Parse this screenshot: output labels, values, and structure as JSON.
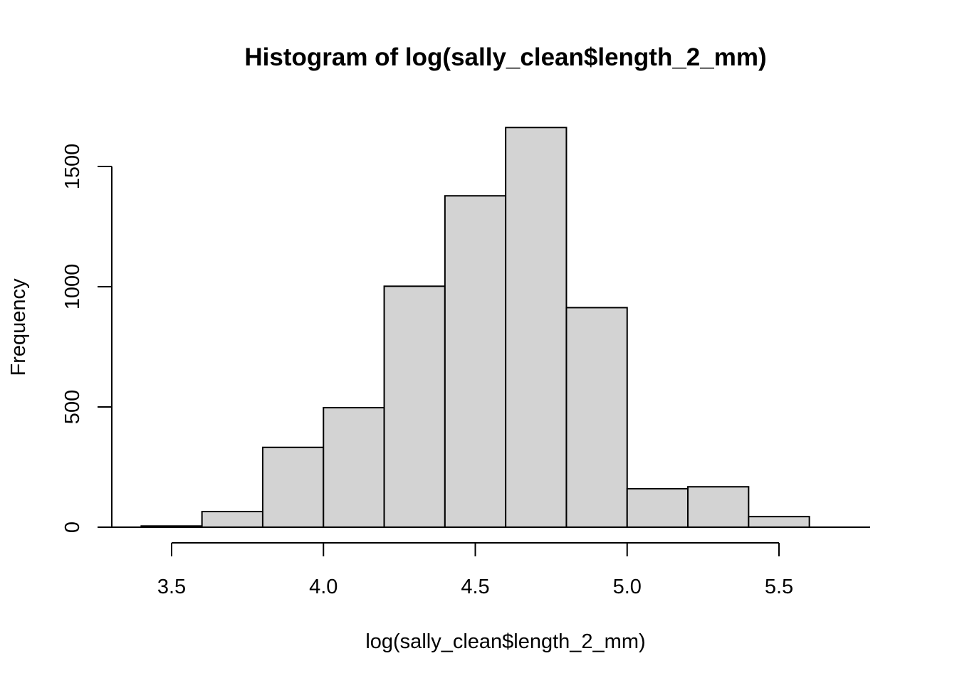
{
  "chart_data": {
    "type": "bar",
    "title": "Histogram of log(sally_clean$length_2_mm)",
    "xlabel": "log(sally_clean$length_2_mm)",
    "ylabel": "Frequency",
    "bins": [
      {
        "x0": 3.4,
        "x1": 3.6,
        "count": 5
      },
      {
        "x0": 3.6,
        "x1": 3.8,
        "count": 65
      },
      {
        "x0": 3.8,
        "x1": 4.0,
        "count": 332
      },
      {
        "x0": 4.0,
        "x1": 4.2,
        "count": 497
      },
      {
        "x0": 4.2,
        "x1": 4.4,
        "count": 1002
      },
      {
        "x0": 4.4,
        "x1": 4.6,
        "count": 1378
      },
      {
        "x0": 4.6,
        "x1": 4.8,
        "count": 1662
      },
      {
        "x0": 4.8,
        "x1": 5.0,
        "count": 913
      },
      {
        "x0": 5.0,
        "x1": 5.2,
        "count": 160
      },
      {
        "x0": 5.2,
        "x1": 5.4,
        "count": 168
      },
      {
        "x0": 5.4,
        "x1": 5.6,
        "count": 44
      }
    ],
    "x_ticks": [
      "3.5",
      "4.0",
      "4.5",
      "5.0",
      "5.5"
    ],
    "y_ticks": [
      "0",
      "500",
      "1000",
      "1500"
    ],
    "xlim": [
      3.3,
      5.8
    ],
    "ylim": [
      0,
      1662
    ],
    "grid": false,
    "legend": "none",
    "bar_color": "#d3d3d3",
    "edge_color": "#000000"
  }
}
